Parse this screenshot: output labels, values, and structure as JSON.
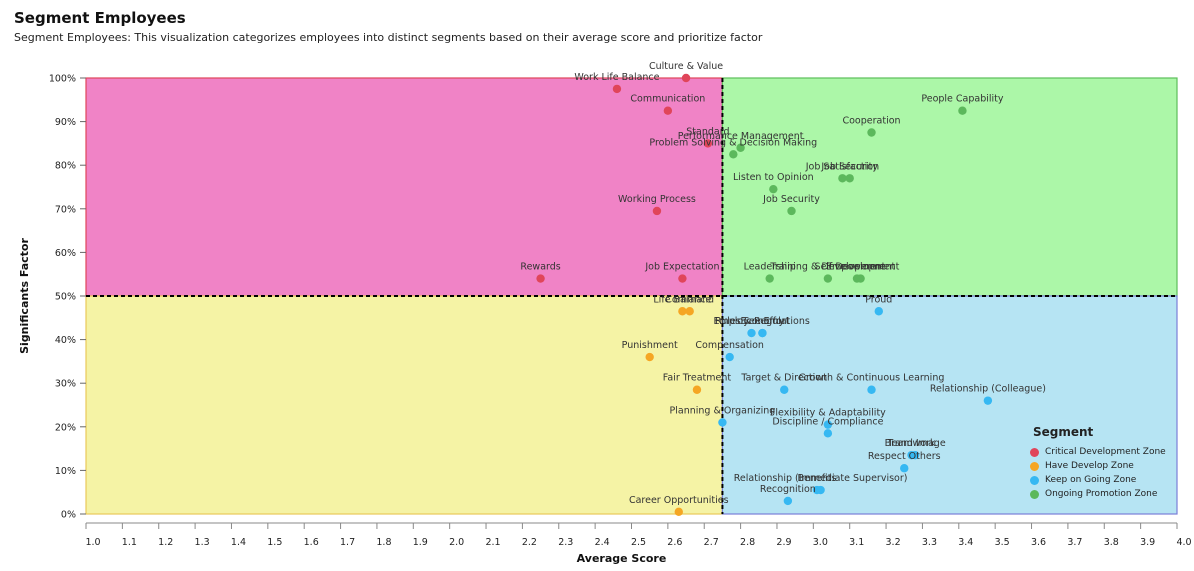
{
  "header": {
    "title": "Segment Employees",
    "subtitle": "Segment Employees: This visualization categorizes employees into distinct segments based on their average score and prioritize factor"
  },
  "chart_data": {
    "type": "scatter",
    "xlabel": "Average Score",
    "ylabel": "Significants Factor",
    "xlim": [
      1.0,
      4.0
    ],
    "ylim": [
      0,
      100
    ],
    "x_ticks": [
      "1.0",
      "1.1",
      "1.2",
      "1.3",
      "1.4",
      "1.5",
      "1.6",
      "1.7",
      "1.8",
      "1.9",
      "2.0",
      "2.1",
      "2.2",
      "2.3",
      "2.4",
      "2.5",
      "2.6",
      "2.7",
      "2.8",
      "2.9",
      "3.0",
      "3.1",
      "3.2",
      "3.3",
      "3.4",
      "3.5",
      "3.6",
      "3.7",
      "3.8",
      "3.9",
      "4.0"
    ],
    "y_ticks": [
      "0%",
      "10%",
      "20%",
      "30%",
      "40%",
      "50%",
      "60%",
      "70%",
      "80%",
      "90%",
      "100%"
    ],
    "x_threshold": 2.75,
    "y_threshold": 50,
    "zones": [
      {
        "name": "Critical Development Zone",
        "quadrant": "top-left",
        "fill": "#f083c6",
        "border": "#e0455a"
      },
      {
        "name": "Ongoing Promotion Zone",
        "quadrant": "top-right",
        "fill": "#acf7a8",
        "border": "#5cbf5a"
      },
      {
        "name": "Have Develop Zone",
        "quadrant": "bottom-left",
        "fill": "#f5f3a5",
        "border": "#e8c95a"
      },
      {
        "name": "Keep on Going Zone",
        "quadrant": "bottom-right",
        "fill": "#b6e4f3",
        "border": "#7a7fd8"
      }
    ],
    "legend": {
      "title": "Segment",
      "placement": "bottom-right",
      "items": [
        {
          "name": "Critical Development Zone",
          "color": "#e0455a"
        },
        {
          "name": "Have Develop Zone",
          "color": "#f5a623"
        },
        {
          "name": "Keep on Going Zone",
          "color": "#36b8f2"
        },
        {
          "name": "Ongoing Promotion Zone",
          "color": "#5cb85c"
        }
      ]
    },
    "series": [
      {
        "name": "Critical Development Zone",
        "color": "#e0455a",
        "points": [
          {
            "label": "Culture & Value",
            "x": 2.65,
            "y": 100
          },
          {
            "label": "Work Life Balance",
            "x": 2.46,
            "y": 97.5
          },
          {
            "label": "Communication",
            "x": 2.6,
            "y": 92.5
          },
          {
            "label": "Standard",
            "x": 2.71,
            "y": 85
          },
          {
            "label": "Working Process",
            "x": 2.57,
            "y": 69.5
          },
          {
            "label": "Rewards",
            "x": 2.25,
            "y": 54
          },
          {
            "label": "Job Expectation",
            "x": 2.64,
            "y": 54
          }
        ]
      },
      {
        "name": "Ongoing Promotion Zone",
        "color": "#5cb85c",
        "points": [
          {
            "label": "People Capability",
            "x": 3.41,
            "y": 92.5
          },
          {
            "label": "Cooperation",
            "x": 3.16,
            "y": 87.5
          },
          {
            "label": "Performance Management",
            "x": 2.8,
            "y": 84
          },
          {
            "label": "Problem Solving & Decision Making",
            "x": 2.78,
            "y": 82.5
          },
          {
            "label": "Job Satisfaction",
            "x": 3.08,
            "y": 77
          },
          {
            "label": "Job Security",
            "x": 3.1,
            "y": 77
          },
          {
            "label": "Listen to Opinion",
            "x": 2.89,
            "y": 74.5
          },
          {
            "label": "Job Security",
            "x": 2.94,
            "y": 69.5
          },
          {
            "label": "Leadership",
            "x": 2.88,
            "y": 54
          },
          {
            "label": "Training & Development",
            "x": 3.04,
            "y": 54
          },
          {
            "label": "Empowerment",
            "x": 3.13,
            "y": 54
          },
          {
            "label": "Self Development",
            "x": 3.12,
            "y": 54
          }
        ]
      },
      {
        "name": "Have Develop Zone",
        "color": "#f5a623",
        "points": [
          {
            "label": "Life Balance",
            "x": 2.64,
            "y": 46.5
          },
          {
            "label": "Command",
            "x": 2.66,
            "y": 46.5
          },
          {
            "label": "Punishment",
            "x": 2.55,
            "y": 36
          },
          {
            "label": "Fair Treatment",
            "x": 2.68,
            "y": 28.5
          },
          {
            "label": "Career Opportunities",
            "x": 2.63,
            "y": 0.5
          }
        ]
      },
      {
        "name": "Keep on Going Zone",
        "color": "#36b8f2",
        "points": [
          {
            "label": "Proud",
            "x": 3.18,
            "y": 46.5
          },
          {
            "label": "Employee Effort",
            "x": 2.83,
            "y": 41.5
          },
          {
            "label": "Rules & Regulations",
            "x": 2.86,
            "y": 41.5
          },
          {
            "label": "Economy",
            "x": 2.86,
            "y": 41.5
          },
          {
            "label": "Compensation",
            "x": 2.77,
            "y": 36
          },
          {
            "label": "Target & Direction",
            "x": 2.92,
            "y": 28.5
          },
          {
            "label": "Growth & Continuous Learning",
            "x": 3.16,
            "y": 28.5
          },
          {
            "label": "Relationship (Colleague)",
            "x": 3.48,
            "y": 26
          },
          {
            "label": "Planning & Organizing",
            "x": 2.75,
            "y": 21
          },
          {
            "label": "Flexibility & Adaptability",
            "x": 3.04,
            "y": 20.5
          },
          {
            "label": "Discipline / Compliance",
            "x": 3.04,
            "y": 18.5
          },
          {
            "label": "Brand Image",
            "x": 3.28,
            "y": 13.5
          },
          {
            "label": "Teamwork",
            "x": 3.27,
            "y": 13.5
          },
          {
            "label": "Respect Others",
            "x": 3.25,
            "y": 10.5
          },
          {
            "label": "Relationship (Immediate Supervisor)",
            "x": 3.02,
            "y": 5.5
          },
          {
            "label": "Benefits",
            "x": 3.01,
            "y": 5.5
          },
          {
            "label": "Recognition",
            "x": 2.93,
            "y": 3
          }
        ]
      }
    ]
  }
}
